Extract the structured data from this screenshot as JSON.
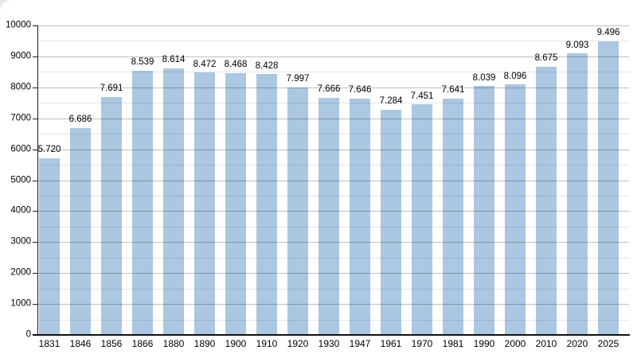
{
  "chart_data": {
    "type": "bar",
    "title": "",
    "xlabel": "",
    "ylabel": "",
    "categories": [
      "1831",
      "1846",
      "1856",
      "1866",
      "1880",
      "1890",
      "1900",
      "1910",
      "1920",
      "1930",
      "1947",
      "1961",
      "1970",
      "1981",
      "1990",
      "2000",
      "2010",
      "2020",
      "2025"
    ],
    "values": [
      5720,
      6686,
      7691,
      8539,
      8614,
      8472,
      8468,
      8428,
      7997,
      7666,
      7646,
      7284,
      7451,
      7641,
      8039,
      8096,
      8675,
      9093,
      9496
    ],
    "value_labels": [
      "5.720",
      "6.686",
      "7.691",
      "8.539",
      "8.614",
      "8.472",
      "8.468",
      "8.428",
      "7.997",
      "7.666",
      "7.646",
      "7.284",
      "7.451",
      "7.641",
      "8.039",
      "8.096",
      "8.675",
      "9.093",
      "9.496"
    ],
    "ylim": [
      0,
      10000
    ],
    "y_tick_step": 1000,
    "y_tick_labels": [
      "0",
      "1000",
      "2000",
      "3000",
      "4000",
      "5000",
      "6000",
      "7000",
      "8000",
      "9000",
      "10000"
    ],
    "minor_gridline_step": 500,
    "grid": true,
    "legend": false,
    "bar_color": "#abc7e1",
    "major_grid_color": "#bfbfbf",
    "minor_grid_color": "#e3e3e3",
    "axis_color": "#111111",
    "text_color": "#000000"
  }
}
